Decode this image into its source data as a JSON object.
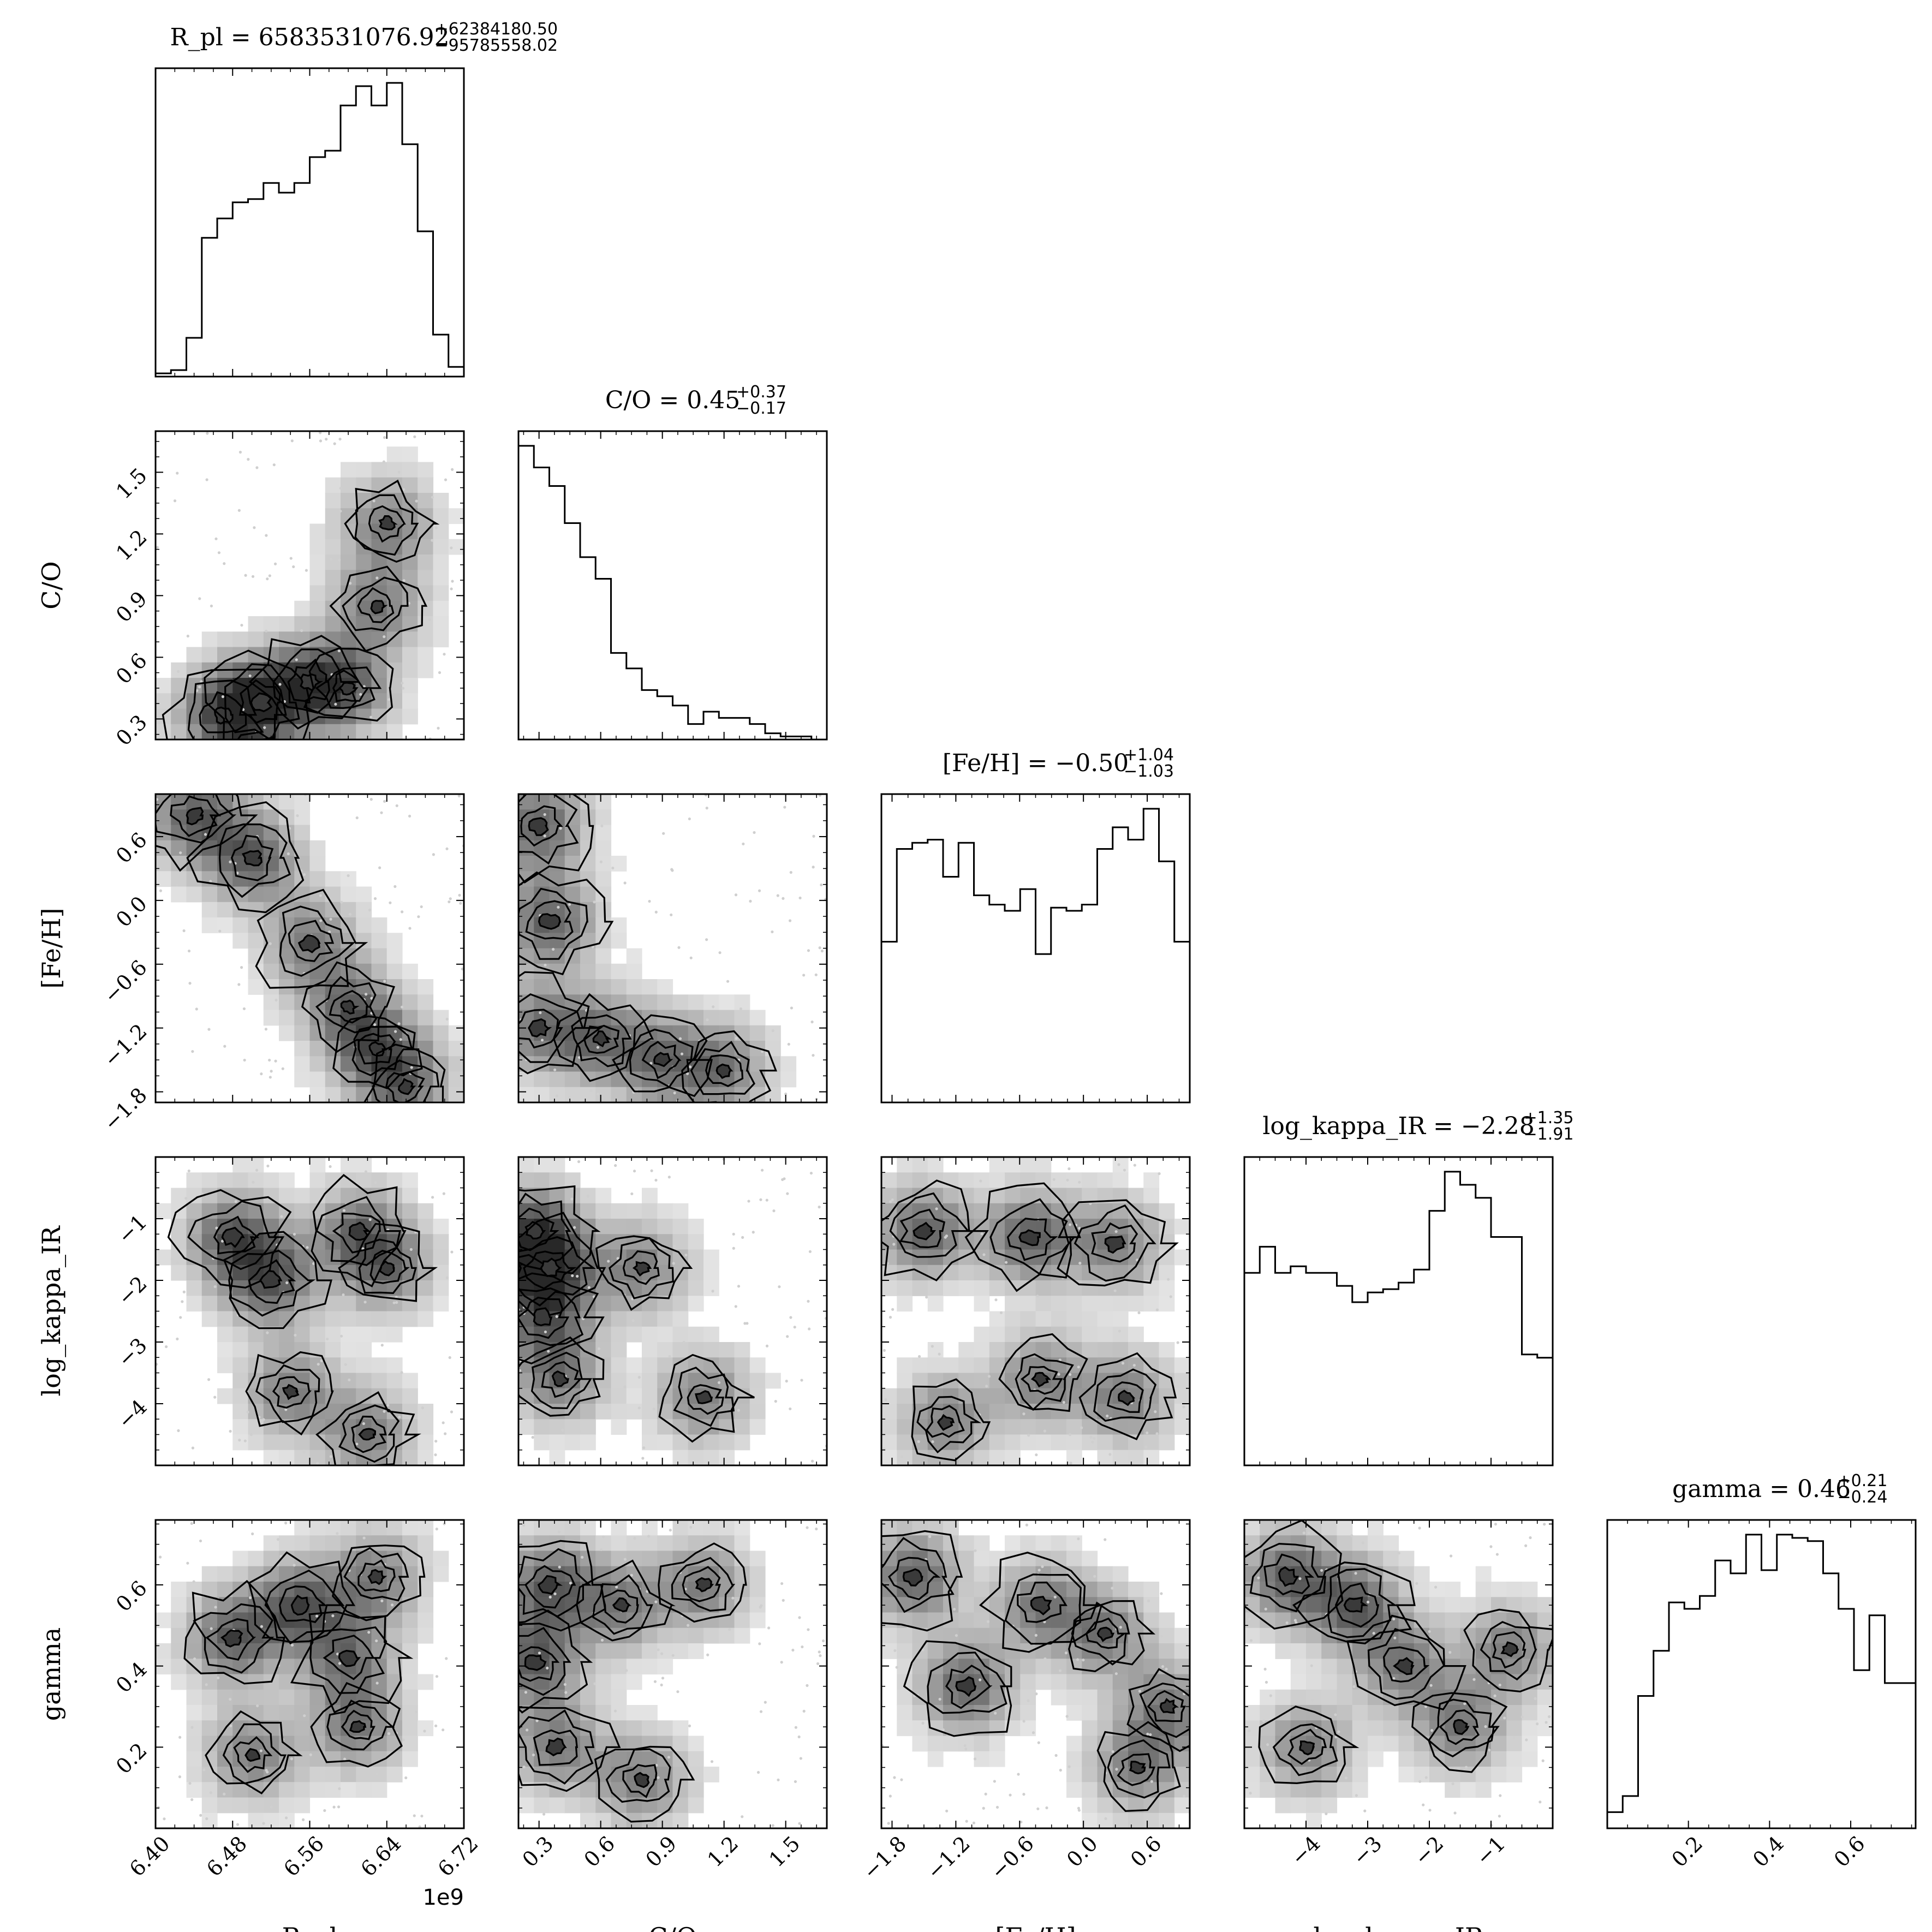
{
  "chart_data": {
    "type": "corner",
    "parameters": [
      {
        "name": "R_pl",
        "axis_label": "R_pl",
        "title": "R_pl = 6583531076.92",
        "title_sup": "+62384180.50",
        "title_sub": "−95785558.02",
        "range": [
          6400000000.0,
          6720000000.0
        ],
        "ticks": [
          6.4,
          6.48,
          6.56,
          6.64,
          6.72
        ],
        "tick_labels": [
          "6.40",
          "6.48",
          "6.56",
          "6.64",
          "6.72"
        ],
        "offset_label": "1e9",
        "hist": [
          1,
          2,
          12,
          43,
          49,
          54,
          55,
          60,
          57,
          60,
          68,
          70,
          84,
          90,
          84,
          91,
          72,
          45,
          13,
          3
        ]
      },
      {
        "name": "C/O",
        "axis_label": "C/O",
        "title": "C/O = 0.45",
        "title_sup": "+0.37",
        "title_sub": "−0.17",
        "range": [
          0.2,
          1.7
        ],
        "ticks": [
          0.3,
          0.6,
          0.9,
          1.2,
          1.5
        ],
        "tick_labels": [
          "0.3",
          "0.6",
          "0.9",
          "1.2",
          "1.5"
        ],
        "hist": [
          95,
          88,
          82,
          70,
          59,
          52,
          28,
          23,
          16,
          14,
          11,
          5,
          9,
          7,
          7,
          5,
          2,
          1,
          1,
          0
        ]
      },
      {
        "name": "[Fe/H]",
        "axis_label": "[Fe/H]",
        "title": "[Fe/H] = −0.50",
        "title_sup": "+1.04",
        "title_sub": "−1.03",
        "range": [
          -1.9,
          1.0
        ],
        "ticks": [
          -1.8,
          -1.2,
          -0.6,
          0.0,
          0.6
        ],
        "tick_labels": [
          "−1.8",
          "−1.2",
          "−0.6",
          "0.0",
          "0.6"
        ],
        "hist": [
          52,
          82,
          84,
          85,
          73,
          84,
          67,
          64,
          62,
          69,
          48,
          63,
          62,
          64,
          82,
          89,
          85,
          95,
          78,
          52
        ]
      },
      {
        "name": "log_kappa_IR",
        "axis_label": "log_kappa_IR",
        "title": "log_kappa_IR = −2.28",
        "title_sup": "+1.35",
        "title_sub": "−1.91",
        "range": [
          -5.0,
          0.0
        ],
        "ticks": [
          -4,
          -3,
          -2,
          -1
        ],
        "tick_labels": [
          "−4",
          "−3",
          "−2",
          "−1"
        ],
        "hist": [
          59,
          67,
          59,
          61,
          59,
          59,
          55,
          50,
          53,
          54,
          56,
          60,
          78,
          90,
          86,
          82,
          70,
          70,
          34,
          33
        ]
      },
      {
        "name": "gamma",
        "axis_label": "gamma",
        "title": "gamma = 0.46",
        "title_sup": "+0.21",
        "title_sub": "−0.24",
        "range": [
          0.0,
          0.76
        ],
        "ticks": [
          0.2,
          0.4,
          0.6
        ],
        "tick_labels": [
          "0.2",
          "0.4",
          "0.6"
        ],
        "hist": [
          5,
          10,
          41,
          55,
          70,
          68,
          72,
          83,
          79,
          91,
          80,
          91,
          90,
          89,
          79,
          68,
          49,
          66,
          45,
          45
        ]
      }
    ],
    "contour_hotspots": [
      {
        "x": "R_pl",
        "y": "C/O",
        "peaks": [
          [
            6470000000.0,
            0.32
          ],
          [
            6510000000.0,
            0.38
          ],
          [
            6560000000.0,
            0.48
          ],
          [
            6600000000.0,
            0.45
          ],
          [
            6630000000.0,
            0.85
          ],
          [
            6640000000.0,
            1.25
          ]
        ]
      },
      {
        "x": "R_pl",
        "y": "[Fe/H]",
        "peaks": [
          [
            6440000000.0,
            0.8
          ],
          [
            6500000000.0,
            0.4
          ],
          [
            6560000000.0,
            -0.4
          ],
          [
            6600000000.0,
            -1.0
          ],
          [
            6630000000.0,
            -1.4
          ],
          [
            6660000000.0,
            -1.75
          ]
        ]
      },
      {
        "x": "C/O",
        "y": "[Fe/H]",
        "peaks": [
          [
            0.3,
            0.7
          ],
          [
            0.35,
            -0.2
          ],
          [
            0.3,
            -1.2
          ],
          [
            0.6,
            -1.3
          ],
          [
            0.9,
            -1.5
          ],
          [
            1.2,
            -1.6
          ]
        ]
      },
      {
        "x": "R_pl",
        "y": "log_kappa_IR",
        "peaks": [
          [
            6480000000.0,
            -1.3
          ],
          [
            6520000000.0,
            -2.0
          ],
          [
            6610000000.0,
            -1.2
          ],
          [
            6640000000.0,
            -1.8
          ],
          [
            6540000000.0,
            -3.8
          ],
          [
            6620000000.0,
            -4.5
          ]
        ]
      },
      {
        "x": "C/O",
        "y": "log_kappa_IR",
        "peaks": [
          [
            0.28,
            -1.2
          ],
          [
            0.35,
            -1.8
          ],
          [
            0.32,
            -2.6
          ],
          [
            0.4,
            -3.6
          ],
          [
            0.8,
            -1.8
          ],
          [
            1.1,
            -3.9
          ]
        ]
      },
      {
        "x": "[Fe/H]",
        "y": "log_kappa_IR",
        "peaks": [
          [
            -1.5,
            -1.2
          ],
          [
            -0.5,
            -1.3
          ],
          [
            0.3,
            -1.4
          ],
          [
            -1.3,
            -4.3
          ],
          [
            -0.4,
            -3.6
          ],
          [
            0.4,
            -3.9
          ]
        ]
      },
      {
        "x": "R_pl",
        "y": "gamma",
        "peaks": [
          [
            6480000000.0,
            0.47
          ],
          [
            6550000000.0,
            0.55
          ],
          [
            6600000000.0,
            0.42
          ],
          [
            6630000000.0,
            0.62
          ],
          [
            6500000000.0,
            0.18
          ],
          [
            6610000000.0,
            0.25
          ]
        ]
      },
      {
        "x": "C/O",
        "y": "gamma",
        "peaks": [
          [
            0.28,
            0.41
          ],
          [
            0.35,
            0.6
          ],
          [
            0.38,
            0.2
          ],
          [
            0.7,
            0.55
          ],
          [
            1.1,
            0.6
          ],
          [
            0.8,
            0.12
          ]
        ]
      },
      {
        "x": "[Fe/H]",
        "y": "gamma",
        "peaks": [
          [
            -1.6,
            0.62
          ],
          [
            -1.1,
            0.35
          ],
          [
            -0.4,
            0.55
          ],
          [
            0.2,
            0.48
          ],
          [
            0.5,
            0.15
          ],
          [
            0.8,
            0.3
          ]
        ]
      },
      {
        "x": "log_kappa_IR",
        "y": "gamma",
        "peaks": [
          [
            -4.3,
            0.62
          ],
          [
            -3.2,
            0.55
          ],
          [
            -2.4,
            0.4
          ],
          [
            -1.5,
            0.25
          ],
          [
            -0.7,
            0.44
          ],
          [
            -4.0,
            0.2
          ]
        ]
      }
    ]
  }
}
